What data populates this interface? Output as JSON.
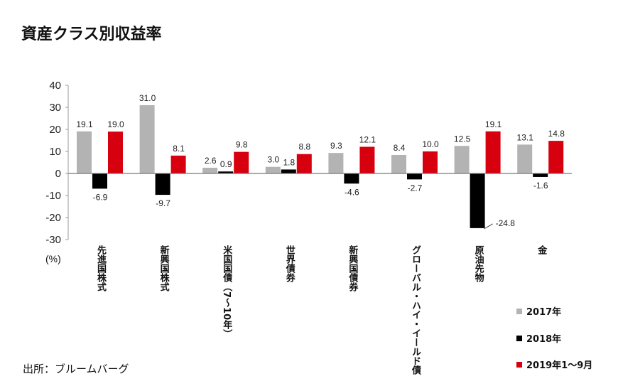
{
  "title": "資産クラス別収益率",
  "source": "出所：ブルームバーグ",
  "chart_data": {
    "type": "bar",
    "title": "資産クラス別収益率",
    "ylabel": "(%)",
    "xlabel": "",
    "ylim": [
      -30,
      40
    ],
    "yticks": [
      -30,
      -20,
      -10,
      0,
      10,
      20,
      30,
      40
    ],
    "ytick_labels": [
      "-30",
      "-20",
      "-10",
      "0",
      "10",
      "20",
      "30",
      "40"
    ],
    "categories": [
      "先進国株式",
      "新興国株式",
      "米国国債（7～10年）",
      "世界債券",
      "新興国債券",
      "グローバル・ハイ・イールド債",
      "原油先物",
      "金"
    ],
    "series": [
      {
        "name": "2017年",
        "color": "#b3b3b3",
        "values": [
          19.1,
          31.0,
          2.6,
          3.0,
          9.3,
          8.4,
          12.5,
          13.1
        ],
        "labels": [
          "19.1",
          "31.0",
          "2.6",
          "3.0",
          "9.3",
          "8.4",
          "12.5",
          "13.1"
        ]
      },
      {
        "name": "2018年",
        "color": "#000000",
        "values": [
          -6.9,
          -9.7,
          0.9,
          1.8,
          -4.6,
          -2.7,
          -24.8,
          -1.6
        ],
        "labels": [
          "-6.9",
          "-9.7",
          "0.9",
          "1.8",
          "-4.6",
          "-2.7",
          "-24.8",
          "-1.6"
        ]
      },
      {
        "name": "2019年1～9月",
        "color": "#d7000f",
        "values": [
          19.0,
          8.1,
          9.8,
          8.8,
          12.1,
          10.0,
          19.1,
          14.8
        ],
        "labels": [
          "19.0",
          "8.1",
          "9.8",
          "8.8",
          "12.1",
          "10.0",
          "19.1",
          "14.8"
        ]
      }
    ],
    "grid": false,
    "legend_position": "bottom-right"
  }
}
